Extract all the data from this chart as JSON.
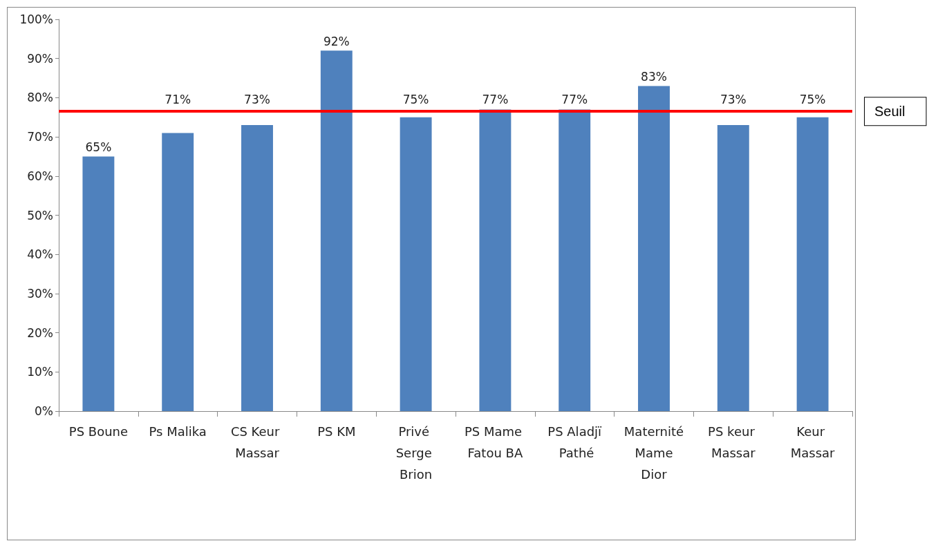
{
  "chart_data": {
    "type": "bar",
    "categories": [
      "PS Boune",
      "Ps Malika",
      "CS Keur Massar",
      "PS KM",
      "Privé Serge Brion",
      "PS Mame Fatou BA",
      "PS Aladjï Pathé",
      "Maternité Mame Dior",
      "PS keur Massar",
      "Keur Massar"
    ],
    "values": [
      65,
      71,
      73,
      92,
      75,
      77,
      77,
      83,
      73,
      75
    ],
    "value_labels": [
      "65%",
      "71%",
      "73%",
      "92%",
      "75%",
      "77%",
      "77%",
      "83%",
      "73%",
      "75%"
    ],
    "color": "#4f81bd",
    "ylim": [
      0,
      100
    ],
    "yticks": [
      {
        "value": 0,
        "label": "0%"
      },
      {
        "value": 10,
        "label": "10%"
      },
      {
        "value": 20,
        "label": "20%"
      },
      {
        "value": 30,
        "label": "30%"
      },
      {
        "value": 40,
        "label": "40%"
      },
      {
        "value": 50,
        "label": "50%"
      },
      {
        "value": 60,
        "label": "60%"
      },
      {
        "value": 70,
        "label": "70%"
      },
      {
        "value": 80,
        "label": "80%"
      },
      {
        "value": 90,
        "label": "90%"
      },
      {
        "value": 100,
        "label": "100%"
      }
    ],
    "ref_lines": [
      {
        "axis": "y",
        "value": 76.5,
        "label": "Seuil",
        "color": "#ff0000"
      }
    ],
    "grid": false
  }
}
